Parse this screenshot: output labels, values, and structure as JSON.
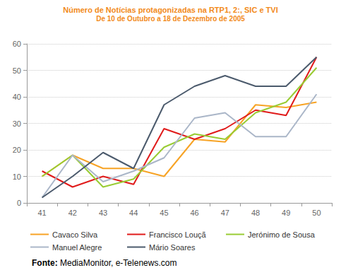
{
  "chart_data": {
    "type": "line",
    "title": "Número de Notícias protagonizadas na RTP1, 2:, SIC e TVI",
    "subtitle": "De 10 de Outubro a 18 de Dezembro de 2005",
    "source": "Fonte: MediaMonitor, e-Telenews.com",
    "categories": [
      "41",
      "42",
      "43",
      "44",
      "45",
      "46",
      "47",
      "48",
      "49",
      "50"
    ],
    "series": [
      {
        "name": "Cavaco Silva",
        "color": "#f7a325",
        "values": [
          10,
          18,
          13,
          13,
          10,
          24,
          23,
          37,
          36,
          38
        ]
      },
      {
        "name": "Francisco Louçã",
        "color": "#e01b1b",
        "values": [
          12,
          6,
          10,
          7,
          28,
          24,
          28,
          35,
          33,
          55
        ]
      },
      {
        "name": "Jerónimo de Sousa",
        "color": "#99cc33",
        "values": [
          10,
          18,
          6,
          9,
          21,
          26,
          24,
          34,
          38,
          51
        ]
      },
      {
        "name": "Manuel Alegre",
        "color": "#aab6c8",
        "values": [
          2,
          18,
          8,
          12,
          17,
          32,
          34,
          25,
          25,
          41
        ]
      },
      {
        "name": "Mário Soares",
        "color": "#4b5a6c",
        "values": [
          2,
          10,
          19,
          13,
          37,
          44,
          48,
          44,
          44,
          55
        ]
      }
    ],
    "ylim": [
      0,
      60
    ],
    "yticks": [
      0,
      10,
      20,
      30,
      40,
      50,
      60
    ],
    "grid": true,
    "legend": "bottom"
  }
}
